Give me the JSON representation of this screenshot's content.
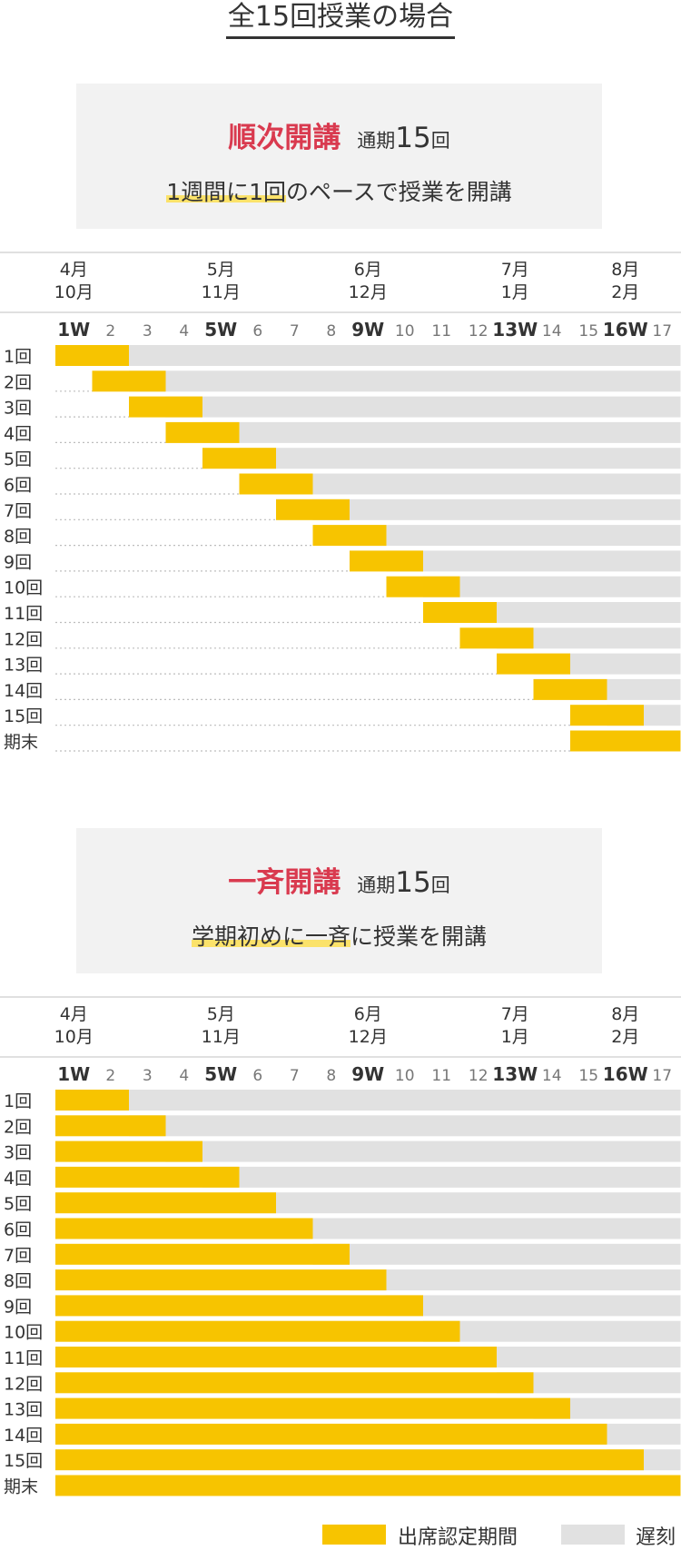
{
  "title": "全15回授業の場合",
  "colors": {
    "attend": "#f7c400",
    "late": "#e1e1e1",
    "accent": "#d93a4f",
    "highlight": "#fbe26a"
  },
  "shared": {
    "months": [
      {
        "top": "4月",
        "bottom": "10月",
        "week": 1
      },
      {
        "top": "5月",
        "bottom": "11月",
        "week": 5
      },
      {
        "top": "6月",
        "bottom": "12月",
        "week": 9
      },
      {
        "top": "7月",
        "bottom": "1月",
        "week": 13
      },
      {
        "top": "8月",
        "bottom": "2月",
        "week": 16
      }
    ],
    "weeks": [
      "1W",
      "2",
      "3",
      "4",
      "5W",
      "6",
      "7",
      "8",
      "9W",
      "10",
      "11",
      "12",
      "13W",
      "14",
      "15",
      "16W",
      "17"
    ],
    "bold_weeks": [
      1,
      5,
      9,
      13,
      16
    ]
  },
  "sections": [
    {
      "mode": "順次開講",
      "term_label": "通期",
      "count": "15",
      "count_unit": "回",
      "desc_highlight": "1週間に1回",
      "desc_rest": "のペースで授業を開講",
      "chart_data": {
        "type": "gantt",
        "rows": [
          "1回",
          "2回",
          "3回",
          "4回",
          "5回",
          "6回",
          "7回",
          "8回",
          "9回",
          "10回",
          "11回",
          "12回",
          "13回",
          "14回",
          "15回",
          "期末"
        ],
        "attendance_start_week": [
          1,
          2,
          3,
          4,
          5,
          6,
          7,
          8,
          9,
          10,
          11,
          12,
          13,
          14,
          15,
          15
        ],
        "attendance_end_week": [
          2,
          3,
          4,
          5,
          6,
          7,
          8,
          9,
          10,
          11,
          12,
          13,
          14,
          15,
          16,
          17
        ],
        "late_until_week": [
          17,
          17,
          17,
          17,
          17,
          17,
          17,
          17,
          17,
          17,
          17,
          17,
          17,
          17,
          17,
          17
        ]
      }
    },
    {
      "mode": "一斉開講",
      "term_label": "通期",
      "count": "15",
      "count_unit": "回",
      "desc_highlight": "学期初めに一斉",
      "desc_rest": "に授業を開講",
      "chart_data": {
        "type": "gantt",
        "rows": [
          "1回",
          "2回",
          "3回",
          "4回",
          "5回",
          "6回",
          "7回",
          "8回",
          "9回",
          "10回",
          "11回",
          "12回",
          "13回",
          "14回",
          "15回",
          "期末"
        ],
        "attendance_start_week": [
          1,
          1,
          1,
          1,
          1,
          1,
          1,
          1,
          1,
          1,
          1,
          1,
          1,
          1,
          1,
          1
        ],
        "attendance_end_week": [
          2,
          3,
          4,
          5,
          6,
          7,
          8,
          9,
          10,
          11,
          12,
          13,
          14,
          15,
          16,
          17
        ],
        "late_until_week": [
          17,
          17,
          17,
          17,
          17,
          17,
          17,
          17,
          17,
          17,
          17,
          17,
          17,
          17,
          17,
          17
        ]
      }
    }
  ],
  "legend": {
    "attend": "出席認定期間",
    "late": "遅刻"
  }
}
